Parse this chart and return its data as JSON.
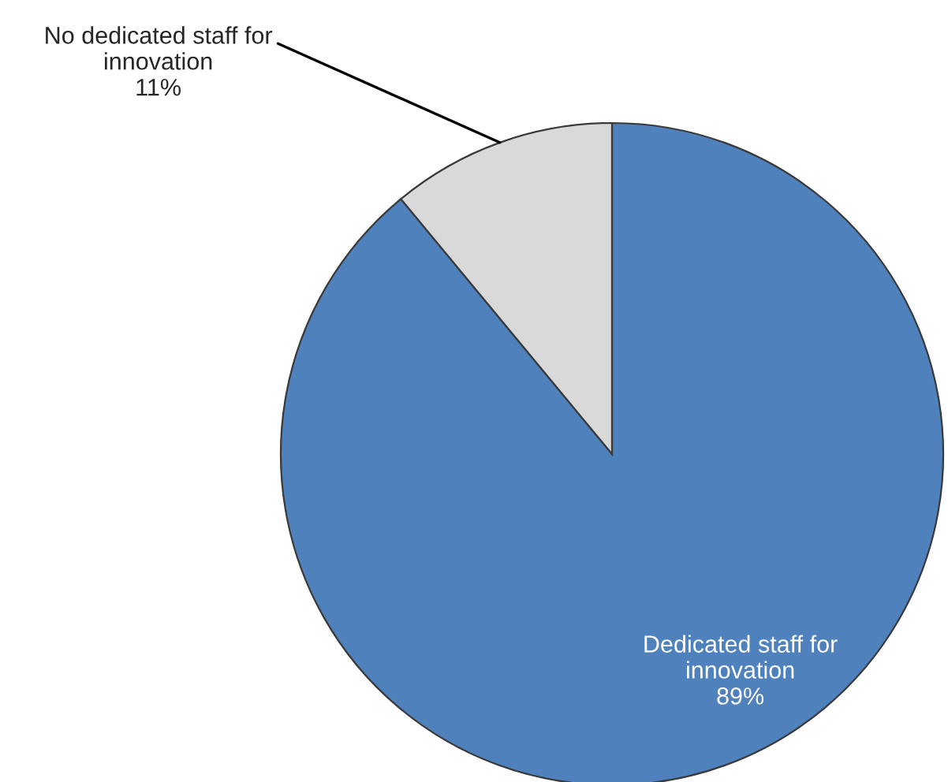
{
  "chart_data": {
    "type": "pie",
    "categories": [
      "Dedicated staff for\ninnovation",
      "No dedicated staff for\ninnovation"
    ],
    "values": [
      89,
      11
    ],
    "colors": [
      "#4f81bd",
      "#d9d9d9"
    ],
    "value_labels": [
      "89%",
      "11%"
    ]
  }
}
